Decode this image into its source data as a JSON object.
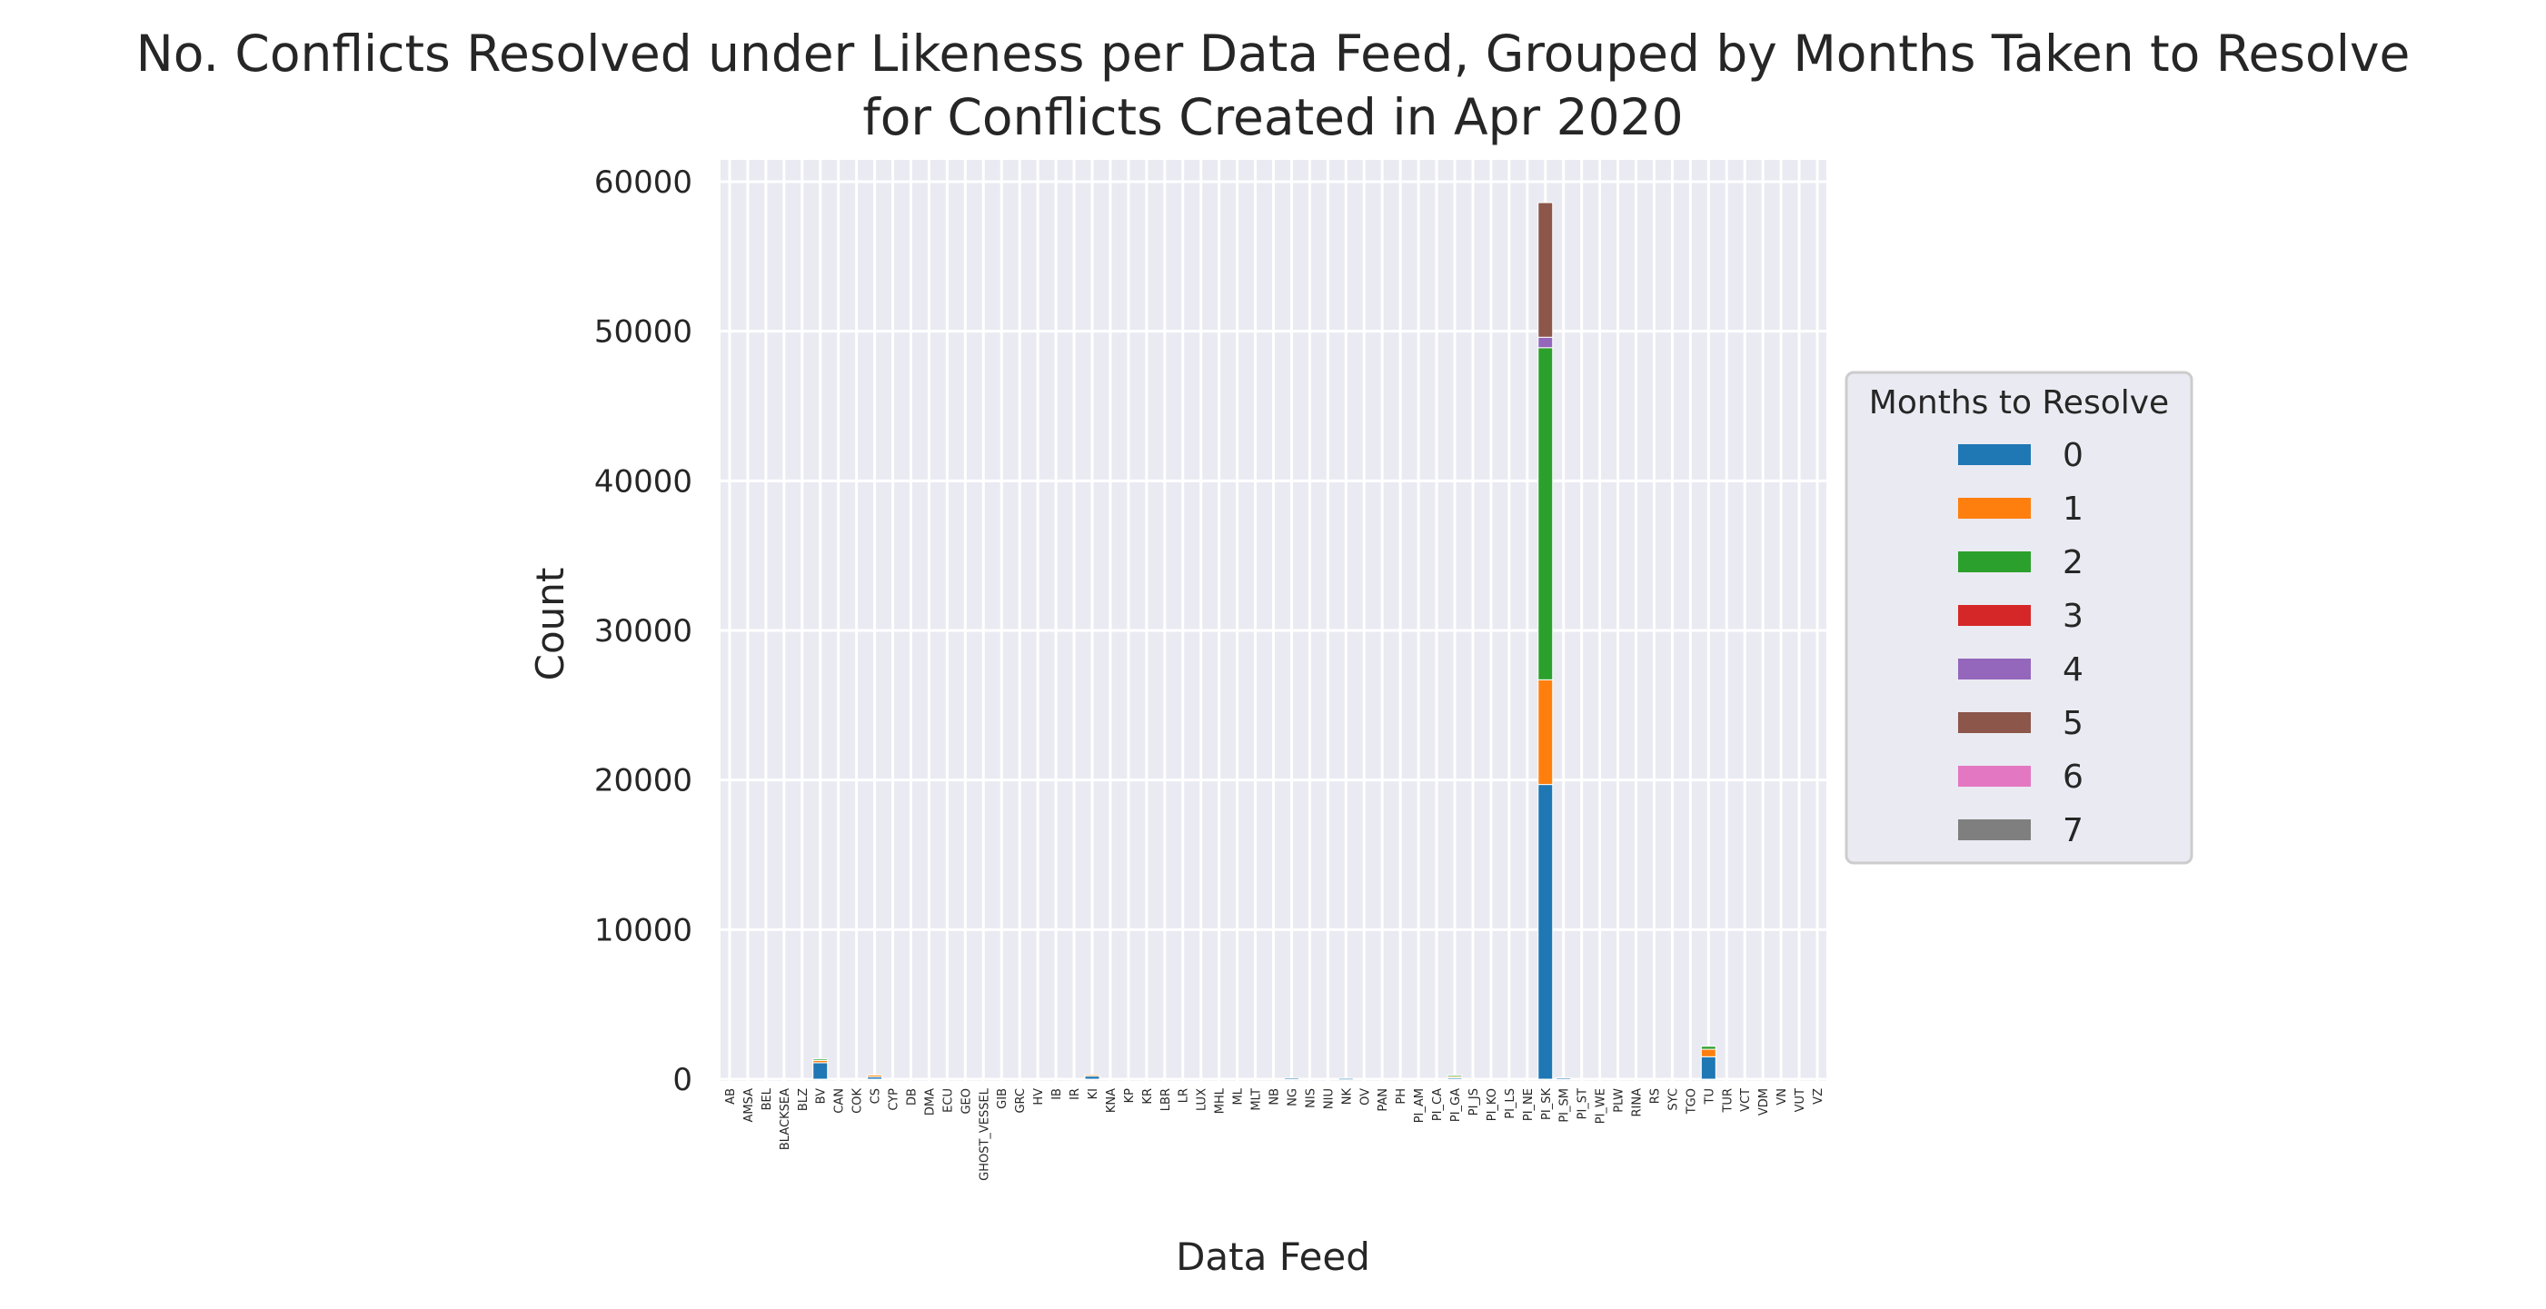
{
  "chart_data": {
    "type": "bar",
    "stacked": true,
    "title": [
      "No. Conflicts Resolved under Likeness per Data Feed, Grouped by Months Taken to Resolve",
      "for Conflicts Created in Apr 2020"
    ],
    "xlabel": "Data Feed",
    "ylabel": "Count",
    "ylim": [
      0,
      61500
    ],
    "yticks": [
      0,
      10000,
      20000,
      30000,
      40000,
      50000,
      60000
    ],
    "grid": true,
    "legend": {
      "title": "Months to Resolve",
      "placement": "center-right outside"
    },
    "categories": [
      "AB",
      "AMSA",
      "BEL",
      "BLACKSEA",
      "BLZ",
      "BV",
      "CAN",
      "COK",
      "CS",
      "CYP",
      "DB",
      "DMA",
      "ECU",
      "GEO",
      "GHOST_VESSEL",
      "GIB",
      "GRC",
      "HV",
      "IB",
      "IR",
      "KI",
      "KNA",
      "KP",
      "KR",
      "LBR",
      "LR",
      "LUX",
      "MHL",
      "ML",
      "MLT",
      "NB",
      "NG",
      "NIS",
      "NIU",
      "NK",
      "OV",
      "PAN",
      "PH",
      "PI_AM",
      "PI_CA",
      "PI_GA",
      "PI_JS",
      "PI_KO",
      "PI_LS",
      "PI_NE",
      "PI_SK",
      "PI_SM",
      "PI_ST",
      "PI_WE",
      "PLW",
      "RINA",
      "RS",
      "SYC",
      "TGO",
      "TU",
      "TUR",
      "VCT",
      "VDM",
      "VN",
      "VUT",
      "VZ"
    ],
    "series": [
      {
        "name": "0",
        "color": "#1f77b4",
        "values": [
          0,
          0,
          0,
          0,
          0,
          1100,
          0,
          0,
          150,
          0,
          0,
          0,
          0,
          0,
          0,
          0,
          0,
          0,
          0,
          0,
          250,
          0,
          0,
          0,
          0,
          0,
          0,
          0,
          0,
          0,
          0,
          60,
          0,
          0,
          50,
          0,
          0,
          0,
          0,
          0,
          120,
          0,
          0,
          0,
          0,
          19700,
          80,
          0,
          0,
          0,
          0,
          0,
          0,
          0,
          1500,
          0,
          0,
          0,
          0,
          0,
          0
        ]
      },
      {
        "name": "1",
        "color": "#ff7f0e",
        "values": [
          0,
          0,
          0,
          0,
          0,
          150,
          0,
          0,
          120,
          0,
          0,
          0,
          0,
          0,
          0,
          0,
          0,
          0,
          0,
          0,
          40,
          0,
          0,
          0,
          0,
          0,
          0,
          0,
          0,
          0,
          0,
          0,
          0,
          0,
          0,
          0,
          0,
          0,
          0,
          0,
          60,
          0,
          0,
          0,
          0,
          7000,
          0,
          0,
          0,
          0,
          0,
          0,
          0,
          0,
          500,
          0,
          0,
          0,
          0,
          0,
          0
        ]
      },
      {
        "name": "2",
        "color": "#2ca02c",
        "values": [
          0,
          0,
          0,
          0,
          0,
          100,
          0,
          0,
          0,
          0,
          0,
          0,
          0,
          0,
          0,
          0,
          0,
          0,
          0,
          0,
          0,
          0,
          0,
          0,
          0,
          0,
          0,
          0,
          0,
          0,
          0,
          0,
          0,
          0,
          0,
          0,
          0,
          0,
          0,
          0,
          80,
          0,
          0,
          0,
          0,
          22200,
          0,
          0,
          0,
          0,
          0,
          0,
          0,
          0,
          200,
          0,
          0,
          0,
          0,
          0,
          0
        ]
      },
      {
        "name": "3",
        "color": "#d62728",
        "values": [
          0,
          0,
          0,
          0,
          0,
          0,
          0,
          0,
          0,
          0,
          0,
          0,
          0,
          0,
          0,
          0,
          0,
          0,
          0,
          0,
          0,
          0,
          0,
          0,
          0,
          0,
          0,
          0,
          0,
          0,
          0,
          0,
          0,
          0,
          0,
          0,
          0,
          0,
          0,
          0,
          0,
          0,
          0,
          0,
          0,
          0,
          0,
          0,
          0,
          0,
          0,
          0,
          0,
          0,
          0,
          0,
          0,
          0,
          0,
          0,
          0
        ]
      },
      {
        "name": "4",
        "color": "#9467bd",
        "values": [
          0,
          0,
          0,
          0,
          0,
          0,
          0,
          0,
          0,
          0,
          0,
          0,
          0,
          0,
          0,
          0,
          0,
          0,
          0,
          0,
          0,
          0,
          0,
          0,
          0,
          0,
          0,
          0,
          0,
          0,
          0,
          0,
          0,
          0,
          0,
          0,
          0,
          0,
          0,
          0,
          0,
          0,
          0,
          0,
          0,
          700,
          0,
          0,
          0,
          0,
          0,
          0,
          0,
          0,
          0,
          0,
          0,
          0,
          0,
          0,
          0
        ]
      },
      {
        "name": "5",
        "color": "#8c564b",
        "values": [
          0,
          0,
          0,
          0,
          0,
          0,
          0,
          0,
          0,
          0,
          0,
          0,
          0,
          0,
          0,
          0,
          0,
          0,
          0,
          0,
          0,
          0,
          0,
          0,
          0,
          0,
          0,
          0,
          0,
          0,
          0,
          0,
          0,
          0,
          0,
          0,
          0,
          0,
          0,
          0,
          0,
          0,
          0,
          0,
          0,
          9000,
          0,
          0,
          0,
          0,
          0,
          0,
          0,
          0,
          0,
          0,
          0,
          0,
          0,
          0,
          0
        ]
      },
      {
        "name": "6",
        "color": "#e377c2",
        "values": [
          0,
          0,
          0,
          0,
          0,
          0,
          0,
          0,
          0,
          0,
          0,
          0,
          0,
          0,
          0,
          0,
          0,
          0,
          0,
          0,
          0,
          0,
          0,
          0,
          0,
          0,
          0,
          0,
          0,
          0,
          0,
          0,
          0,
          0,
          0,
          0,
          0,
          0,
          0,
          0,
          0,
          0,
          0,
          0,
          0,
          0,
          0,
          0,
          0,
          0,
          0,
          0,
          0,
          0,
          0,
          0,
          0,
          0,
          0,
          0,
          0
        ]
      },
      {
        "name": "7",
        "color": "#7f7f7f",
        "values": [
          0,
          0,
          0,
          0,
          0,
          0,
          0,
          0,
          0,
          0,
          0,
          0,
          0,
          0,
          0,
          0,
          0,
          0,
          0,
          0,
          0,
          0,
          0,
          0,
          0,
          0,
          0,
          0,
          0,
          0,
          0,
          0,
          0,
          0,
          0,
          0,
          0,
          0,
          0,
          0,
          0,
          0,
          0,
          0,
          0,
          0,
          0,
          0,
          0,
          0,
          0,
          0,
          0,
          0,
          0,
          0,
          0,
          0,
          0,
          0,
          0
        ]
      }
    ]
  }
}
